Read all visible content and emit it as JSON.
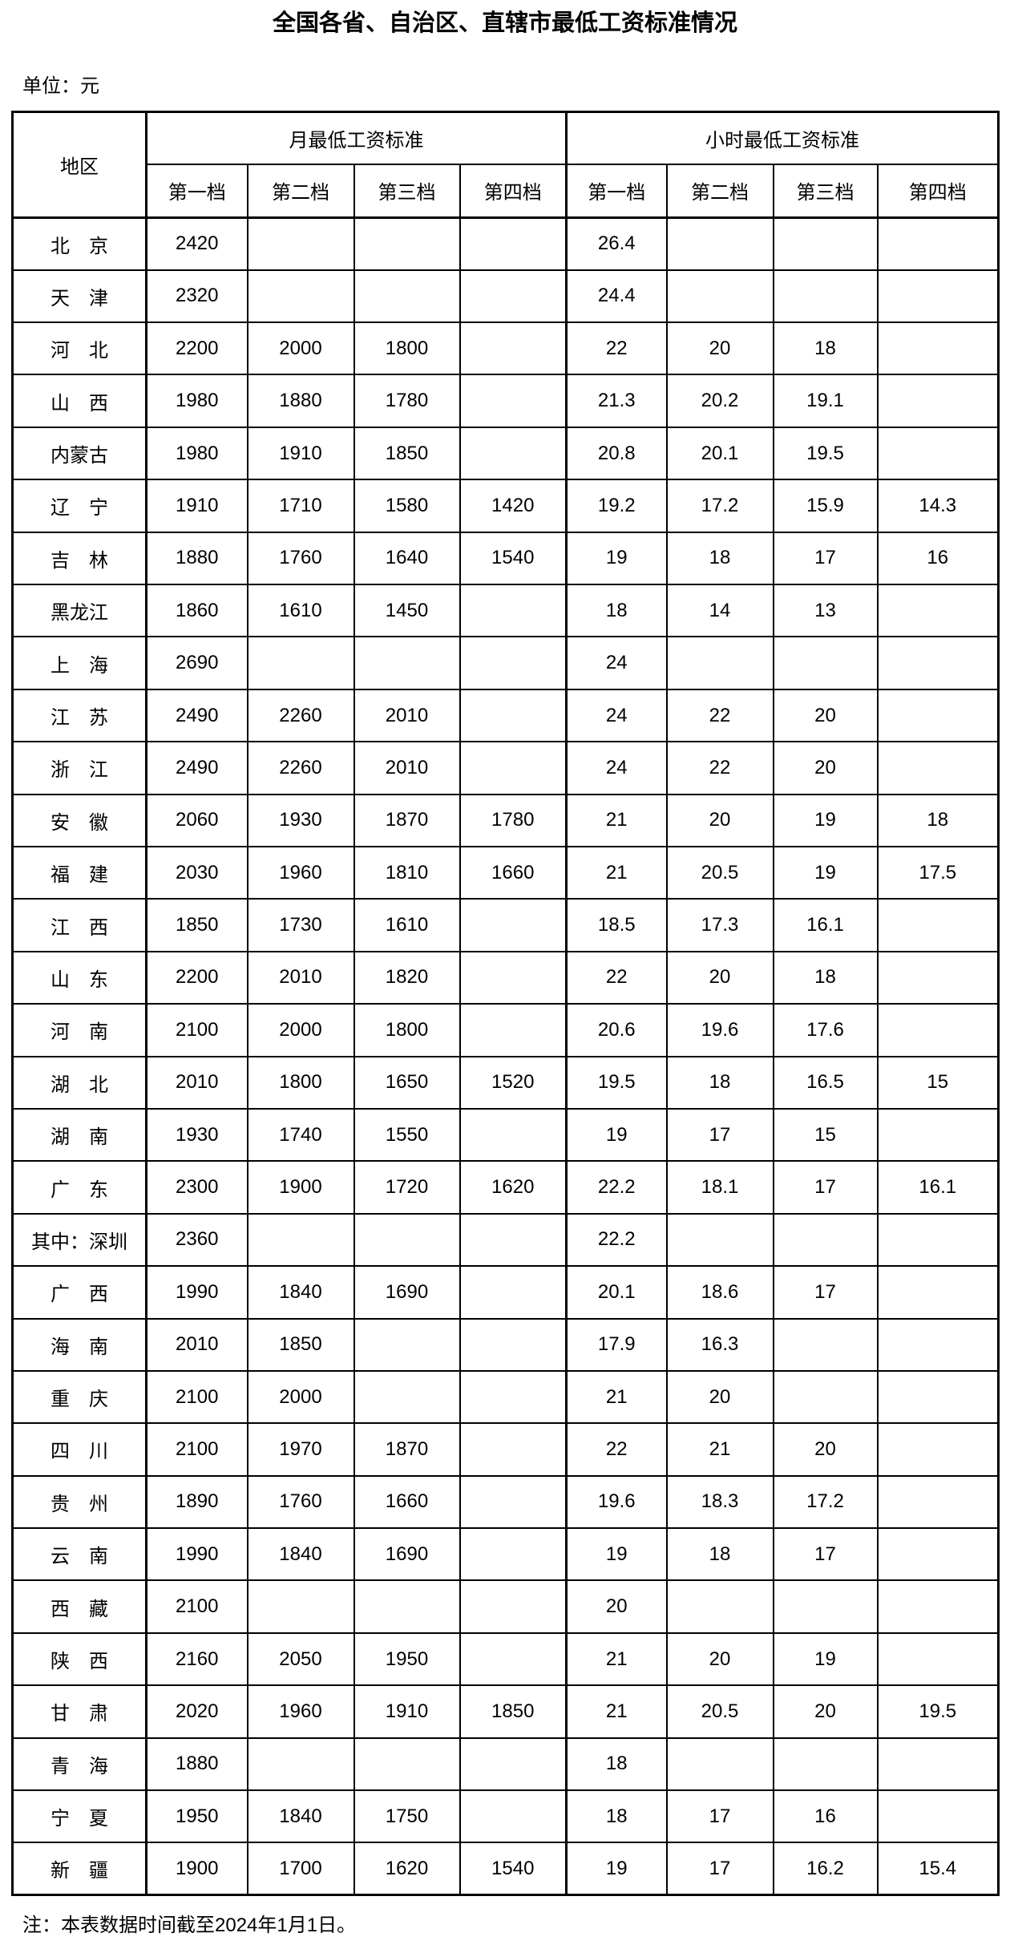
{
  "page": {
    "title": "全国各省、自治区、直辖市最低工资标准情况",
    "unit_note": "单位：元",
    "footer_note": "注：本表数据时间截至2024年1月1日。"
  },
  "colors": {
    "text": "#000000",
    "background": "#ffffff",
    "border": "#000000"
  },
  "table": {
    "region_header": "地区",
    "groups": [
      {
        "label": "月最低工资标准",
        "sub": [
          "第一档",
          "第二档",
          "第三档",
          "第四档"
        ]
      },
      {
        "label": "小时最低工资标准",
        "sub": [
          "第一档",
          "第二档",
          "第三档",
          "第四档"
        ]
      }
    ],
    "rows": [
      {
        "region": "北　京",
        "monthly": [
          "2420",
          "",
          "",
          ""
        ],
        "hourly": [
          "26.4",
          "",
          "",
          ""
        ]
      },
      {
        "region": "天　津",
        "monthly": [
          "2320",
          "",
          "",
          ""
        ],
        "hourly": [
          "24.4",
          "",
          "",
          ""
        ]
      },
      {
        "region": "河　北",
        "monthly": [
          "2200",
          "2000",
          "1800",
          ""
        ],
        "hourly": [
          "22",
          "20",
          "18",
          ""
        ]
      },
      {
        "region": "山　西",
        "monthly": [
          "1980",
          "1880",
          "1780",
          ""
        ],
        "hourly": [
          "21.3",
          "20.2",
          "19.1",
          ""
        ]
      },
      {
        "region": "内蒙古",
        "monthly": [
          "1980",
          "1910",
          "1850",
          ""
        ],
        "hourly": [
          "20.8",
          "20.1",
          "19.5",
          ""
        ]
      },
      {
        "region": "辽　宁",
        "monthly": [
          "1910",
          "1710",
          "1580",
          "1420"
        ],
        "hourly": [
          "19.2",
          "17.2",
          "15.9",
          "14.3"
        ]
      },
      {
        "region": "吉　林",
        "monthly": [
          "1880",
          "1760",
          "1640",
          "1540"
        ],
        "hourly": [
          "19",
          "18",
          "17",
          "16"
        ]
      },
      {
        "region": "黑龙江",
        "monthly": [
          "1860",
          "1610",
          "1450",
          ""
        ],
        "hourly": [
          "18",
          "14",
          "13",
          ""
        ]
      },
      {
        "region": "上　海",
        "monthly": [
          "2690",
          "",
          "",
          ""
        ],
        "hourly": [
          "24",
          "",
          "",
          ""
        ]
      },
      {
        "region": "江　苏",
        "monthly": [
          "2490",
          "2260",
          "2010",
          ""
        ],
        "hourly": [
          "24",
          "22",
          "20",
          ""
        ]
      },
      {
        "region": "浙　江",
        "monthly": [
          "2490",
          "2260",
          "2010",
          ""
        ],
        "hourly": [
          "24",
          "22",
          "20",
          ""
        ]
      },
      {
        "region": "安　徽",
        "monthly": [
          "2060",
          "1930",
          "1870",
          "1780"
        ],
        "hourly": [
          "21",
          "20",
          "19",
          "18"
        ]
      },
      {
        "region": "福　建",
        "monthly": [
          "2030",
          "1960",
          "1810",
          "1660"
        ],
        "hourly": [
          "21",
          "20.5",
          "19",
          "17.5"
        ]
      },
      {
        "region": "江　西",
        "monthly": [
          "1850",
          "1730",
          "1610",
          ""
        ],
        "hourly": [
          "18.5",
          "17.3",
          "16.1",
          ""
        ]
      },
      {
        "region": "山　东",
        "monthly": [
          "2200",
          "2010",
          "1820",
          ""
        ],
        "hourly": [
          "22",
          "20",
          "18",
          ""
        ]
      },
      {
        "region": "河　南",
        "monthly": [
          "2100",
          "2000",
          "1800",
          ""
        ],
        "hourly": [
          "20.6",
          "19.6",
          "17.6",
          ""
        ]
      },
      {
        "region": "湖　北",
        "monthly": [
          "2010",
          "1800",
          "1650",
          "1520"
        ],
        "hourly": [
          "19.5",
          "18",
          "16.5",
          "15"
        ]
      },
      {
        "region": "湖　南",
        "monthly": [
          "1930",
          "1740",
          "1550",
          ""
        ],
        "hourly": [
          "19",
          "17",
          "15",
          ""
        ]
      },
      {
        "region": "广　东",
        "monthly": [
          "2300",
          "1900",
          "1720",
          "1620"
        ],
        "hourly": [
          "22.2",
          "18.1",
          "17",
          "16.1"
        ]
      },
      {
        "region": "其中：深圳",
        "monthly": [
          "2360",
          "",
          "",
          ""
        ],
        "hourly": [
          "22.2",
          "",
          "",
          ""
        ]
      },
      {
        "region": "广　西",
        "monthly": [
          "1990",
          "1840",
          "1690",
          ""
        ],
        "hourly": [
          "20.1",
          "18.6",
          "17",
          ""
        ]
      },
      {
        "region": "海　南",
        "monthly": [
          "2010",
          "1850",
          "",
          ""
        ],
        "hourly": [
          "17.9",
          "16.3",
          "",
          ""
        ]
      },
      {
        "region": "重　庆",
        "monthly": [
          "2100",
          "2000",
          "",
          ""
        ],
        "hourly": [
          "21",
          "20",
          "",
          ""
        ]
      },
      {
        "region": "四　川",
        "monthly": [
          "2100",
          "1970",
          "1870",
          ""
        ],
        "hourly": [
          "22",
          "21",
          "20",
          ""
        ]
      },
      {
        "region": "贵　州",
        "monthly": [
          "1890",
          "1760",
          "1660",
          ""
        ],
        "hourly": [
          "19.6",
          "18.3",
          "17.2",
          ""
        ]
      },
      {
        "region": "云　南",
        "monthly": [
          "1990",
          "1840",
          "1690",
          ""
        ],
        "hourly": [
          "19",
          "18",
          "17",
          ""
        ]
      },
      {
        "region": "西　藏",
        "monthly": [
          "2100",
          "",
          "",
          ""
        ],
        "hourly": [
          "20",
          "",
          "",
          ""
        ]
      },
      {
        "region": "陕　西",
        "monthly": [
          "2160",
          "2050",
          "1950",
          ""
        ],
        "hourly": [
          "21",
          "20",
          "19",
          ""
        ]
      },
      {
        "region": "甘　肃",
        "monthly": [
          "2020",
          "1960",
          "1910",
          "1850"
        ],
        "hourly": [
          "21",
          "20.5",
          "20",
          "19.5"
        ]
      },
      {
        "region": "青　海",
        "monthly": [
          "1880",
          "",
          "",
          ""
        ],
        "hourly": [
          "18",
          "",
          "",
          ""
        ]
      },
      {
        "region": "宁　夏",
        "monthly": [
          "1950",
          "1840",
          "1750",
          ""
        ],
        "hourly": [
          "18",
          "17",
          "16",
          ""
        ]
      },
      {
        "region": "新　疆",
        "monthly": [
          "1900",
          "1700",
          "1620",
          "1540"
        ],
        "hourly": [
          "19",
          "17",
          "16.2",
          "15.4"
        ]
      }
    ]
  }
}
